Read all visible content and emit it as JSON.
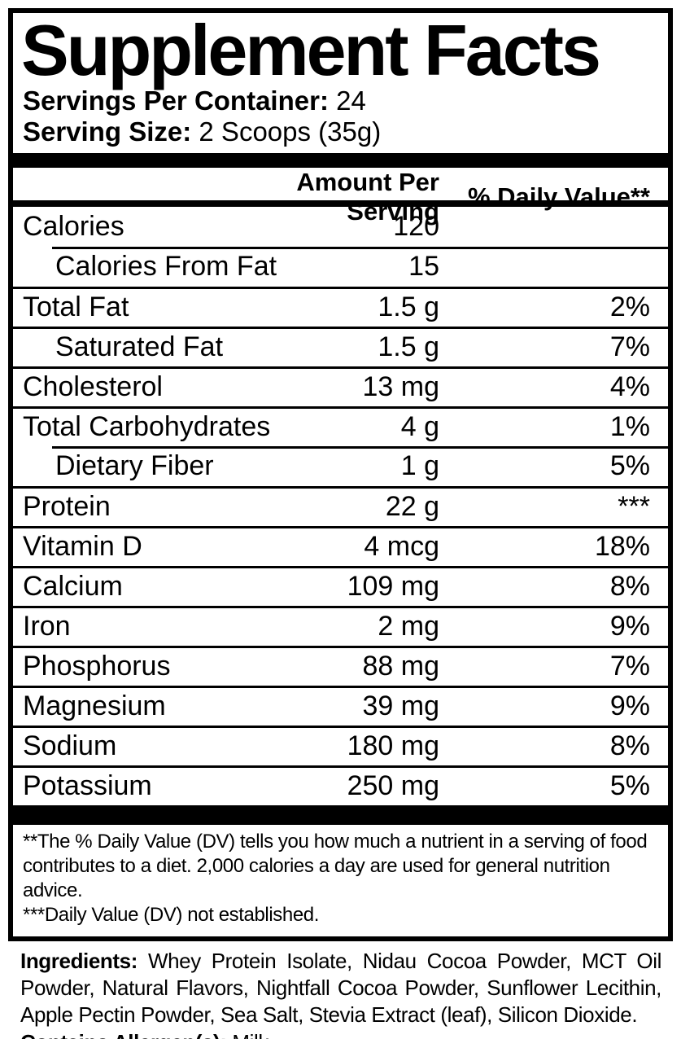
{
  "label": {
    "title": "Supplement Facts",
    "servings_per_container_label": "Servings Per Container:",
    "servings_per_container_value": "24",
    "serving_size_label": "Serving Size:",
    "serving_size_value": "2 Scoops (35g)",
    "table": {
      "header": {
        "amount": "Amount Per Serving",
        "dv": "% Daily Value**"
      },
      "rows": [
        {
          "label": "Calories",
          "amount": "120",
          "dv": "",
          "indent": false,
          "sep": "none"
        },
        {
          "label": "Calories From Fat",
          "amount": "15",
          "dv": "",
          "indent": true,
          "sep": "indent"
        },
        {
          "label": "Total Fat",
          "amount": "1.5 g",
          "dv": "2%",
          "indent": false,
          "sep": "full"
        },
        {
          "label": "Saturated Fat",
          "amount": "1.5 g",
          "dv": "7%",
          "indent": true,
          "sep": "full"
        },
        {
          "label": "Cholesterol",
          "amount": "13 mg",
          "dv": "4%",
          "indent": false,
          "sep": "full"
        },
        {
          "label": "Total Carbohydrates",
          "amount": "4 g",
          "dv": "1%",
          "indent": false,
          "sep": "full"
        },
        {
          "label": "Dietary Fiber",
          "amount": "1 g",
          "dv": "5%",
          "indent": true,
          "sep": "indent"
        },
        {
          "label": "Protein",
          "amount": "22 g",
          "dv": "***",
          "indent": false,
          "sep": "full"
        },
        {
          "label": "Vitamin D",
          "amount": "4 mcg",
          "dv": "18%",
          "indent": false,
          "sep": "full"
        },
        {
          "label": "Calcium",
          "amount": "109 mg",
          "dv": "8%",
          "indent": false,
          "sep": "full"
        },
        {
          "label": "Iron",
          "amount": "2 mg",
          "dv": "9%",
          "indent": false,
          "sep": "full"
        },
        {
          "label": "Phosphorus",
          "amount": "88 mg",
          "dv": "7%",
          "indent": false,
          "sep": "full"
        },
        {
          "label": "Magnesium",
          "amount": "39 mg",
          "dv": "9%",
          "indent": false,
          "sep": "full"
        },
        {
          "label": "Sodium",
          "amount": "180 mg",
          "dv": "8%",
          "indent": false,
          "sep": "full"
        },
        {
          "label": "Potassium",
          "amount": "250 mg",
          "dv": "5%",
          "indent": false,
          "sep": "full"
        }
      ]
    },
    "footnotes": [
      "**The % Daily Value (DV) tells you how much a nutrient in a serving of food contributes to a diet. 2,000 calories a day are used for general nutrition advice.",
      "***Daily Value (DV) not established."
    ]
  },
  "ingredients": {
    "label": "Ingredients:",
    "text": "Whey Protein Isolate, Nidau Cocoa Powder, MCT Oil Powder, Natural Flavors, Nightfall Cocoa Powder, Sunflower Lecithin, Apple Pectin Powder, Sea Salt, Stevia Extract (leaf), Silicon Dioxide.",
    "allergen_label": "Contains Allergen(s):",
    "allergen_value": "Milk"
  },
  "colors": {
    "text": "#000000",
    "background": "#ffffff"
  }
}
